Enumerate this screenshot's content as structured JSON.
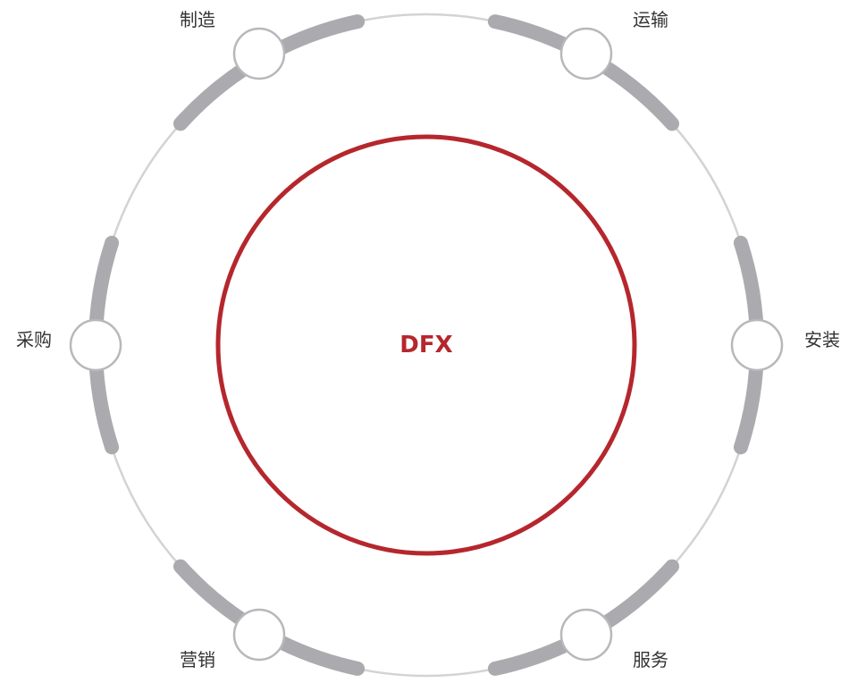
{
  "center": {
    "label": "DFX",
    "color": "#B5272D"
  },
  "colors": {
    "ring": "#D3D3D3",
    "arc": "#ABABAF",
    "node_stroke": "#B8B8BC",
    "node_fill": "#FFFFFF",
    "label_text": "#333333"
  },
  "nodes": [
    {
      "id": "manufacturing",
      "label": "制造"
    },
    {
      "id": "transport",
      "label": "运输"
    },
    {
      "id": "installation",
      "label": "安装"
    },
    {
      "id": "service",
      "label": "服务"
    },
    {
      "id": "marketing",
      "label": "营销"
    },
    {
      "id": "procurement",
      "label": "采购"
    }
  ]
}
